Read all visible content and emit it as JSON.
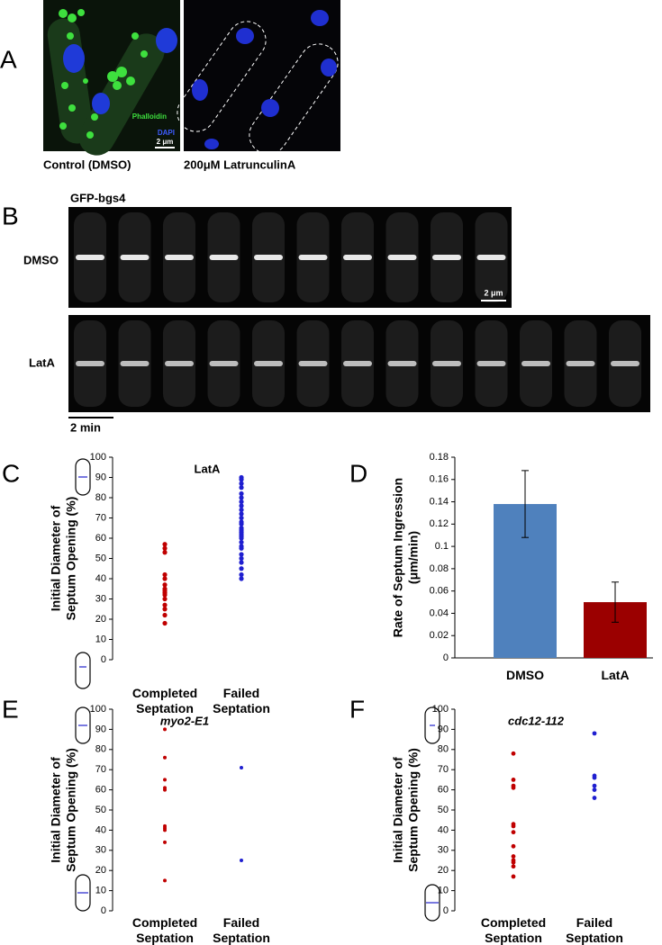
{
  "panel_labels": [
    "A",
    "B",
    "C",
    "D",
    "E",
    "F"
  ],
  "panel_a": {
    "stains": [
      "Phalloidin",
      "DAPI"
    ],
    "scale": "2 μm",
    "captions": [
      "Control (DMSO)",
      "200μM LatrunculinA"
    ]
  },
  "panel_b": {
    "title": "GFP-bgs4",
    "rows": [
      "DMSO",
      "LatA"
    ],
    "scale": "2 μm",
    "time_scale": "2 min"
  },
  "chart_data": [
    {
      "type": "scatter",
      "title": "LatA",
      "ylabel": [
        "Initial Diameter of",
        "Septum Opening (%)"
      ],
      "categories": [
        "Completed Septation",
        "Failed Septation"
      ],
      "groups": [
        {
          "color": "#c00000",
          "values": [
            57,
            55,
            53,
            42,
            40,
            37,
            35,
            34,
            33,
            32,
            30,
            27,
            25,
            22,
            18
          ]
        },
        {
          "color": "#1f1fd0",
          "values": [
            90,
            89,
            87,
            85,
            82,
            80,
            78,
            76,
            74,
            72,
            70,
            68,
            67,
            65,
            64,
            63,
            62,
            61,
            60,
            58,
            56,
            55,
            52,
            50,
            48,
            45,
            42,
            40
          ]
        }
      ],
      "ylim": [
        0,
        100
      ],
      "yticks": [
        0,
        10,
        20,
        30,
        40,
        50,
        60,
        70,
        80,
        90,
        100
      ]
    },
    {
      "type": "bar",
      "ylabel": [
        "Rate of Septum Ingression",
        "(μm/min)"
      ],
      "categories": [
        "DMSO",
        "LatA"
      ],
      "values": [
        0.138,
        0.05
      ],
      "errors": [
        0.03,
        0.018
      ],
      "colors": [
        "#4f81bd",
        "#9b0000"
      ],
      "ylim": [
        0,
        0.18
      ],
      "yticks": [
        0,
        0.02,
        0.04,
        0.06,
        0.08,
        0.1,
        0.12,
        0.14,
        0.16,
        0.18
      ]
    },
    {
      "type": "scatter",
      "title": "myo2-E1",
      "ylabel": [
        "Initial Diameter of",
        "Septum Opening (%)"
      ],
      "categories": [
        "Completed Septation",
        "Failed Septation"
      ],
      "groups": [
        {
          "color": "#c00000",
          "values": [
            90,
            76,
            65,
            61,
            60,
            42,
            41,
            40,
            34,
            15
          ]
        },
        {
          "color": "#1f1fd0",
          "values": [
            71,
            25
          ]
        }
      ],
      "ylim": [
        0,
        100
      ],
      "yticks": [
        0,
        10,
        20,
        30,
        40,
        50,
        60,
        70,
        80,
        90,
        100
      ]
    },
    {
      "type": "scatter",
      "title": "cdc12-112",
      "ylabel": [
        "Initial Diameter of",
        "Septum Opening (%)"
      ],
      "categories": [
        "Completed Septation",
        "Failed Septation"
      ],
      "groups": [
        {
          "color": "#c00000",
          "values": [
            78,
            65,
            62,
            61,
            43,
            42,
            39,
            32,
            27,
            25,
            24,
            22,
            17
          ]
        },
        {
          "color": "#1f1fd0",
          "values": [
            88,
            67,
            66,
            62,
            60,
            56
          ]
        }
      ],
      "ylim": [
        0,
        100
      ],
      "yticks": [
        0,
        10,
        20,
        30,
        40,
        50,
        60,
        70,
        80,
        90,
        100
      ]
    }
  ]
}
